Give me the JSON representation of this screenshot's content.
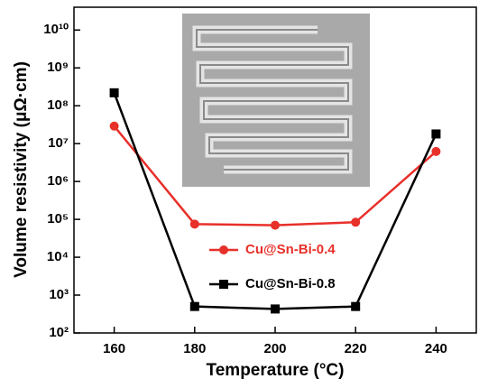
{
  "chart_data": {
    "type": "line",
    "x_label": "Temperature (°C)",
    "y_label": "Volume resistivity (μΩ·cm)",
    "x": [
      160,
      180,
      200,
      220,
      240
    ],
    "series": [
      {
        "name": "Cu@Sn-Bi-0.4",
        "color": "#e8302a",
        "marker": "circle",
        "values": [
          29000000,
          75000,
          70000,
          84000,
          6200000
        ]
      },
      {
        "name": "Cu@Sn-Bi-0.8",
        "color": "#000000",
        "marker": "square",
        "values": [
          220000000,
          500,
          430,
          500,
          18000000
        ]
      }
    ],
    "xlim": [
      150,
      250
    ],
    "xticks": [
      160,
      180,
      200,
      220,
      240
    ],
    "ylim": [
      100,
      40000000000
    ],
    "y_log": true,
    "yticks": [
      {
        "value": 100,
        "label": "10²"
      },
      {
        "value": 1000,
        "label": "10³"
      },
      {
        "value": 10000,
        "label": "10⁴"
      },
      {
        "value": 100000,
        "label": "10⁵"
      },
      {
        "value": 1000000,
        "label": "10⁶"
      },
      {
        "value": 10000000,
        "label": "10⁷"
      },
      {
        "value": 100000000,
        "label": "10⁸"
      },
      {
        "value": 1000000000,
        "label": "10⁹"
      },
      {
        "value": 10000000000,
        "label": "10¹⁰"
      }
    ]
  }
}
